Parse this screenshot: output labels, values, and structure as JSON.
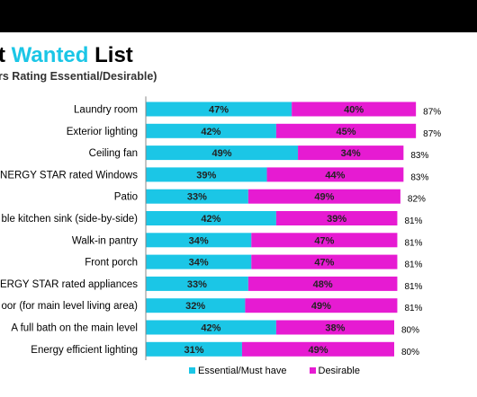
{
  "header": {
    "title_part1": "t ",
    "title_accent": "Wanted",
    "title_part2": " List",
    "subtitle": "rs Rating Essential/Desirable)"
  },
  "colors": {
    "essential": "#1BC6E6",
    "desirable": "#E61BD2",
    "accent": "#1BC6E6"
  },
  "chart_data": {
    "type": "bar",
    "orientation": "horizontal",
    "stacked": true,
    "categories": [
      "Laundry room",
      "Exterior lighting",
      "Ceiling fan",
      "NERGY STAR rated Windows",
      "Patio",
      "ble kitchen sink (side-by-side)",
      "Walk-in pantry",
      "Front porch",
      "ERGY STAR rated appliances",
      "oor (for main level living area)",
      "A full bath on the main level",
      "Energy efficient lighting"
    ],
    "series": [
      {
        "name": "Essential/Must have",
        "values": [
          47,
          42,
          49,
          39,
          33,
          42,
          34,
          34,
          33,
          32,
          42,
          31
        ]
      },
      {
        "name": "Desirable",
        "values": [
          40,
          45,
          34,
          44,
          49,
          39,
          47,
          47,
          48,
          49,
          38,
          49
        ]
      }
    ],
    "segment_labels": {
      "essential": [
        "47%",
        "42%",
        "49%",
        "39%",
        "33%",
        "42%",
        "34%",
        "34%",
        "33%",
        "32%",
        "42%",
        "31%"
      ],
      "desirable": [
        "40%",
        "45%",
        "34%",
        "44%",
        "49%",
        "39%",
        "47%",
        "47%",
        "48%",
        "49%",
        "38%",
        "49%"
      ]
    },
    "totals": [
      "87%",
      "87%",
      "83%",
      "83%",
      "82%",
      "81%",
      "81%",
      "81%",
      "81%",
      "81%",
      "80%",
      "80%"
    ],
    "legend": {
      "position": "bottom",
      "items": [
        "Essential/Must have",
        "Desirable"
      ]
    },
    "grid": false
  }
}
